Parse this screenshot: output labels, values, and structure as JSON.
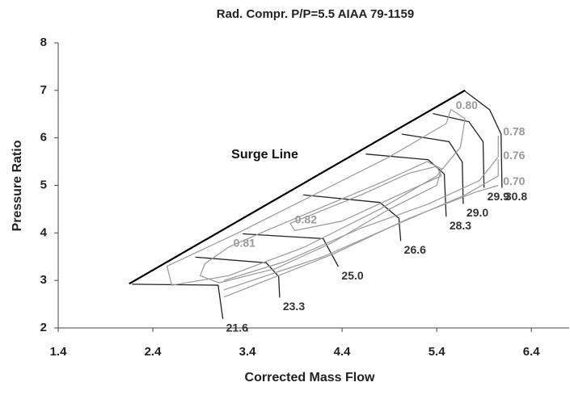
{
  "chart_data": {
    "type": "line",
    "title": "Rad. Compr. P/P=5.5 AIAA 79-1159",
    "xlabel": "Corrected Mass Flow",
    "ylabel": "Pressure Ratio",
    "xlim": [
      1.4,
      6.8
    ],
    "ylim": [
      2,
      8
    ],
    "xticks": [
      1.4,
      2.4,
      3.4,
      4.4,
      5.4,
      6.4
    ],
    "yticks": [
      2,
      3,
      4,
      5,
      6,
      7,
      8
    ],
    "series": [
      {
        "name": "Surge Line",
        "color": "#000000",
        "linewidth": 2.2,
        "x": [
          2.15,
          5.7
        ],
        "values": [
          2.93,
          7.0
        ]
      },
      {
        "name": "21.6",
        "color": "#222222",
        "linewidth": 1.3,
        "x": [
          2.18,
          3.09,
          3.14
        ],
        "values": [
          2.92,
          2.9,
          2.19
        ]
      },
      {
        "name": "23.3",
        "color": "#222222",
        "linewidth": 1.3,
        "x": [
          2.85,
          3.6,
          3.73,
          3.74
        ],
        "values": [
          3.49,
          3.37,
          3.08,
          2.64
        ]
      },
      {
        "name": "25.0",
        "color": "#222222",
        "linewidth": 1.3,
        "x": [
          3.35,
          4.2,
          4.36
        ],
        "values": [
          3.98,
          3.88,
          3.29
        ]
      },
      {
        "name": "26.6",
        "color": "#222222",
        "linewidth": 1.3,
        "x": [
          3.99,
          4.8,
          5.0,
          5.02
        ],
        "values": [
          4.8,
          4.64,
          4.31,
          3.83
        ]
      },
      {
        "name": "28.3",
        "color": "#222222",
        "linewidth": 1.3,
        "x": [
          4.65,
          5.31,
          5.48,
          5.5
        ],
        "values": [
          5.66,
          5.54,
          5.24,
          4.34
        ]
      },
      {
        "name": "29.0",
        "color": "#222222",
        "linewidth": 1.3,
        "x": [
          5.03,
          5.53,
          5.67,
          5.68
        ],
        "values": [
          6.08,
          5.92,
          5.49,
          4.61
        ]
      },
      {
        "name": "29.9",
        "color": "#222222",
        "linewidth": 1.3,
        "x": [
          5.36,
          5.74,
          5.89,
          5.9
        ],
        "values": [
          6.51,
          6.34,
          5.92,
          4.95
        ]
      },
      {
        "name": "30.8",
        "color": "#222222",
        "linewidth": 1.3,
        "x": [
          5.7,
          5.96,
          6.08,
          6.09
        ],
        "values": [
          6.98,
          6.59,
          6.08,
          4.95
        ]
      },
      {
        "name": "0.80",
        "color": "#999999",
        "linewidth": 1.2,
        "x": [
          5.55,
          5.7,
          5.65,
          5.4,
          4.8,
          4.0,
          3.2,
          2.6,
          2.55,
          3.3,
          4.1,
          4.9,
          5.5,
          5.55
        ],
        "values": [
          6.6,
          6.4,
          5.8,
          5.2,
          4.5,
          3.7,
          3.1,
          2.9,
          3.3,
          4.0,
          4.8,
          5.6,
          6.3,
          6.6
        ]
      },
      {
        "name": "0.78",
        "color": "#999999",
        "linewidth": 1.2,
        "x": [
          6.05,
          6.05,
          5.85,
          5.3,
          4.6,
          3.8,
          3.15
        ],
        "values": [
          6.05,
          5.6,
          5.1,
          4.6,
          4.1,
          3.4,
          3.0
        ]
      },
      {
        "name": "0.76",
        "color": "#999999",
        "linewidth": 1.2,
        "x": [
          6.05,
          6.05,
          5.7,
          5.0,
          4.2,
          3.15
        ],
        "values": [
          5.55,
          5.2,
          4.8,
          4.2,
          3.5,
          2.8
        ]
      },
      {
        "name": "0.70",
        "color": "#999999",
        "linewidth": 1.2,
        "x": [
          6.05,
          5.8,
          5.1,
          4.3,
          3.15
        ],
        "values": [
          5.0,
          4.85,
          4.3,
          3.55,
          2.65
        ]
      },
      {
        "name": "0.82",
        "color": "#999999",
        "linewidth": 1.2,
        "x": [
          3.85,
          4.6,
          5.1,
          5.4,
          5.45,
          5.0,
          4.4,
          3.9,
          3.85
        ],
        "values": [
          4.2,
          4.8,
          5.25,
          5.4,
          5.2,
          4.8,
          4.25,
          4.05,
          4.2
        ]
      },
      {
        "name": "0.81",
        "color": "#999999",
        "linewidth": 1.2,
        "x": [
          3.2,
          3.6,
          4.2,
          4.8,
          5.3,
          5.45,
          5.4,
          4.9,
          4.3,
          3.7,
          3.1,
          2.9,
          2.95,
          3.2
        ],
        "values": [
          3.7,
          4.05,
          4.55,
          5.05,
          5.5,
          5.35,
          5.0,
          4.5,
          3.8,
          3.25,
          2.95,
          3.1,
          3.35,
          3.7
        ]
      }
    ]
  }
}
